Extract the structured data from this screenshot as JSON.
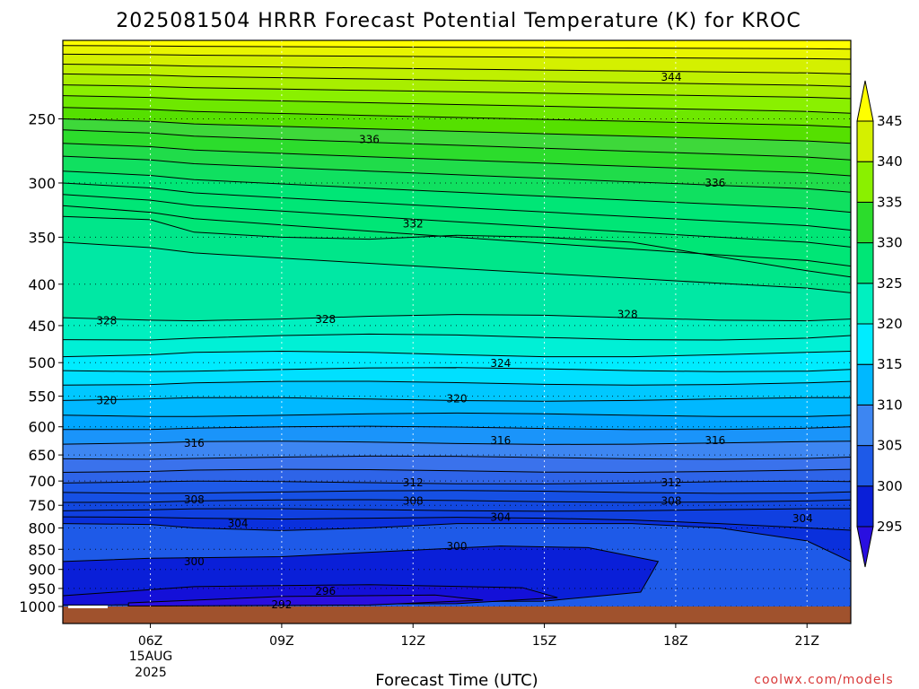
{
  "chart_data": {
    "type": "heatmap",
    "title": "2025081504 HRRR Forecast Potential Temperature (K) for KROC",
    "xlabel": "Forecast Time (UTC)",
    "credit": "coolwx.com/models",
    "x_ticks": [
      {
        "label": "06Z",
        "hour": 6
      },
      {
        "label": "09Z",
        "hour": 9
      },
      {
        "label": "12Z",
        "hour": 12
      },
      {
        "label": "15Z",
        "hour": 15
      },
      {
        "label": "18Z",
        "hour": 18
      },
      {
        "label": "21Z",
        "hour": 21
      }
    ],
    "date_label": [
      "15AUG",
      "2025"
    ],
    "xlim": [
      4,
      22
    ],
    "y_ticks": [
      250,
      300,
      350,
      400,
      450,
      500,
      550,
      600,
      650,
      700,
      750,
      800,
      850,
      900,
      950,
      1000
    ],
    "ylim_hpa": [
      200,
      1000
    ],
    "y_scale": "log",
    "grid": "dotted",
    "colorbar": {
      "levels": [
        295,
        300,
        305,
        310,
        315,
        320,
        325,
        330,
        335,
        340,
        345
      ],
      "colors": [
        "#2a0fe0",
        "#0a1fd8",
        "#1e5ae8",
        "#3d86f2",
        "#00b8ff",
        "#00ecff",
        "#00f0c0",
        "#00e676",
        "#2cdc2c",
        "#8af000",
        "#d4f000",
        "#ffff00"
      ],
      "extend": "both"
    },
    "ground_color": "#a0522d",
    "contour_labels": [
      {
        "value": "344",
        "hour": 17.9,
        "p": 222
      },
      {
        "value": "336",
        "hour": 11.0,
        "p": 265
      },
      {
        "value": "336",
        "hour": 18.9,
        "p": 300
      },
      {
        "value": "332",
        "hour": 12.0,
        "p": 337
      },
      {
        "value": "328",
        "hour": 5.0,
        "p": 444
      },
      {
        "value": "328",
        "hour": 10.0,
        "p": 442
      },
      {
        "value": "328",
        "hour": 16.9,
        "p": 436
      },
      {
        "value": "324",
        "hour": 14.0,
        "p": 501
      },
      {
        "value": "320",
        "hour": 5.0,
        "p": 557
      },
      {
        "value": "320",
        "hour": 13.0,
        "p": 554
      },
      {
        "value": "316",
        "hour": 7.0,
        "p": 629
      },
      {
        "value": "316",
        "hour": 14.0,
        "p": 624
      },
      {
        "value": "316",
        "hour": 18.9,
        "p": 624
      },
      {
        "value": "312",
        "hour": 12.0,
        "p": 703
      },
      {
        "value": "312",
        "hour": 17.9,
        "p": 703
      },
      {
        "value": "308",
        "hour": 7.0,
        "p": 738
      },
      {
        "value": "308",
        "hour": 12.0,
        "p": 741
      },
      {
        "value": "308",
        "hour": 17.9,
        "p": 741
      },
      {
        "value": "304",
        "hour": 8.0,
        "p": 790
      },
      {
        "value": "304",
        "hour": 14.0,
        "p": 776
      },
      {
        "value": "304",
        "hour": 20.9,
        "p": 779
      },
      {
        "value": "300",
        "hour": 13.0,
        "p": 843
      },
      {
        "value": "300",
        "hour": 7.0,
        "p": 880
      },
      {
        "value": "296",
        "hour": 10.0,
        "p": 958
      },
      {
        "value": "292",
        "hour": 9.0,
        "p": 995
      }
    ]
  }
}
